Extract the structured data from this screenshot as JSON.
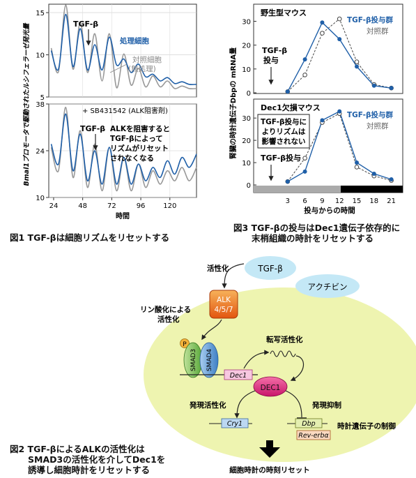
{
  "fig1": {
    "ylabel": "Bmal1プロモータで駆動されたルシフェラーゼ発光量",
    "xlabel": "時間",
    "xticks": [
      "24",
      "48",
      "72",
      "96",
      "120"
    ],
    "top": {
      "yticks": [
        "5",
        "10",
        "15"
      ],
      "arrow_label": "TGF-β",
      "legend_treated": "処理細胞",
      "legend_control_1": "対照細胞",
      "legend_control_2": "(無処理)"
    },
    "bottom": {
      "yticks": [
        "10",
        "24",
        "38"
      ],
      "inhibitor_label": "+ SB431542 (ALK阻害剤)",
      "arrow_label": "TGF-β",
      "note_lines": [
        "ALKを阻害すると",
        "TGF-βによって",
        "リズムがリセット",
        "されなくなる"
      ]
    },
    "caption": "図1  TGF-βは細胞リズムをリセットする"
  },
  "fig2": {
    "activation": "活性化",
    "tgf": "TGF-β",
    "activin": "アクチビン",
    "alk_1": "ALK",
    "alk_2": "4/5/7",
    "phos_1": "リン酸化による",
    "phos_2": "活性化",
    "p": "P",
    "smad3": "SMAD3",
    "smad4": "SMAD4",
    "transcription": "転写活性化",
    "dec1_gene": "Dec1",
    "dec1_protein": "DEC1",
    "expr_activation": "発現活性化",
    "expr_repression": "発現抑制",
    "cry1": "Cry1",
    "dbp": "Dbp",
    "rev": "Rev-erbα",
    "clock_control": "時計遺伝子の制御",
    "reset": "細胞時計の時刻リセット",
    "caption_lines": [
      "図2  TGF-βによるALKの活性化は",
      "SMAD3の活性化を介してDec1を",
      "誘導し細胞時計をリセットする"
    ]
  },
  "fig3": {
    "ylabel": "腎臓の時計遺伝子Dbpの mRNA量",
    "xlabel": "投与からの時間",
    "xticks": [
      "3",
      "6",
      "9",
      "12",
      "15",
      "18",
      "21"
    ],
    "top": {
      "title": "野生型マウス",
      "legend_treated": "TGF-β投与群",
      "legend_control": "対照群",
      "dose_1": "TGF-β",
      "dose_2": "投与",
      "yticks": [
        "0",
        "10",
        "20",
        "30"
      ]
    },
    "bottom": {
      "title": "Dec1欠損マウス",
      "legend_treated": "TGF-β投与群",
      "legend_control": "対照群",
      "note_lines": [
        "TGF-β投与に",
        "よりリズムは",
        "影響されない"
      ],
      "dose": "TGF-β投与",
      "yticks": [
        "0",
        "10",
        "20",
        "30"
      ]
    },
    "caption_lines": [
      "図3  TGF-βの投与はDec1遺伝子依存的に",
      "末梢組織の時計をリセットする"
    ]
  },
  "chart_data": [
    {
      "type": "line",
      "title": "",
      "xlabel": "時間",
      "ylabel": "Bmal1プロモータで駆動されたルシフェラーゼ発光量",
      "xlim": [
        20,
        142
      ],
      "ylim": [
        5,
        16
      ],
      "series": [
        {
          "name": "処理細胞",
          "color": "#1f5fa8",
          "x": [
            22,
            28,
            34,
            40,
            46,
            52,
            58,
            64,
            70,
            76,
            82,
            88,
            94,
            100,
            106,
            112,
            118,
            124,
            130,
            136,
            142
          ],
          "values": [
            10.5,
            8.3,
            14.8,
            8.6,
            13.1,
            8.2,
            11.2,
            8.2,
            12.1,
            8.8,
            9.5,
            7.9,
            8.9,
            7.4,
            7.7,
            6.9,
            7.3,
            6.6,
            6.8,
            6.5,
            6.5
          ]
        },
        {
          "name": "対照細胞 (無処理)",
          "color": "#999999",
          "x": [
            22,
            28,
            34,
            40,
            46,
            52,
            58,
            64,
            70,
            76,
            82,
            88,
            94,
            100,
            106,
            112,
            118,
            124,
            130,
            136,
            142
          ],
          "values": [
            10.8,
            8.0,
            15.9,
            8.3,
            13.8,
            7.9,
            12.5,
            6.9,
            12.5,
            6.1,
            10.1,
            6.4,
            8.4,
            6.2,
            7.5,
            6.2,
            6.9,
            6.0,
            6.3,
            6.0,
            6.0
          ]
        }
      ]
    },
    {
      "type": "line",
      "title": "+ SB431542 (ALK阻害剤)",
      "xlabel": "時間",
      "xlim": [
        20,
        142
      ],
      "ylim": [
        10,
        38
      ],
      "series": [
        {
          "name": "処理細胞",
          "color": "#1f5fa8",
          "x": [
            22,
            28,
            34,
            40,
            46,
            52,
            58,
            64,
            70,
            76,
            82,
            88,
            94,
            100,
            106,
            112,
            118,
            124,
            130,
            136,
            142
          ],
          "values": [
            26,
            20,
            35,
            18,
            29,
            15,
            24,
            14,
            25,
            14,
            22,
            14,
            20,
            15,
            19,
            16,
            21,
            17,
            22,
            19,
            23
          ]
        },
        {
          "name": "対照細胞",
          "color": "#999999",
          "x": [
            22,
            28,
            34,
            40,
            46,
            52,
            58,
            64,
            70,
            76,
            82,
            88,
            94,
            100,
            106,
            112,
            118,
            124,
            130,
            136,
            142
          ],
          "values": [
            25,
            18,
            37,
            16,
            30,
            13,
            26,
            12,
            25,
            12,
            22,
            12,
            20,
            13,
            18,
            14,
            18,
            15,
            19,
            15,
            19
          ]
        }
      ]
    },
    {
      "type": "line",
      "title": "野生型マウス",
      "xlabel": "投与からの時間",
      "ylabel": "腎臓の時計遺伝子Dbpの mRNA量",
      "categories": [
        "3",
        "6",
        "9",
        "12",
        "15",
        "18",
        "21"
      ],
      "ylim": [
        0,
        36
      ],
      "series": [
        {
          "name": "TGF-β投与群",
          "color": "#1f5fa8",
          "values": [
            0.5,
            14,
            29.5,
            22.5,
            11,
            3,
            2
          ]
        },
        {
          "name": "対照群",
          "color": "#444444",
          "values": [
            0.5,
            7.5,
            25,
            31,
            13,
            3.5,
            2
          ]
        }
      ]
    },
    {
      "type": "line",
      "title": "Dec1欠損マウス",
      "xlabel": "投与からの時間",
      "ylabel": "腎臓の時計遺伝子Dbpの mRNA量",
      "categories": [
        "3",
        "6",
        "9",
        "12",
        "15",
        "18",
        "21"
      ],
      "ylim": [
        0,
        36
      ],
      "series": [
        {
          "name": "TGF-β投与群",
          "color": "#1f5fa8",
          "values": [
            1.5,
            6,
            29,
            33,
            10,
            5,
            2.5
          ]
        },
        {
          "name": "対照群",
          "color": "#444444",
          "values": [
            1.5,
            12,
            28,
            32,
            8,
            4,
            2
          ]
        }
      ]
    }
  ]
}
